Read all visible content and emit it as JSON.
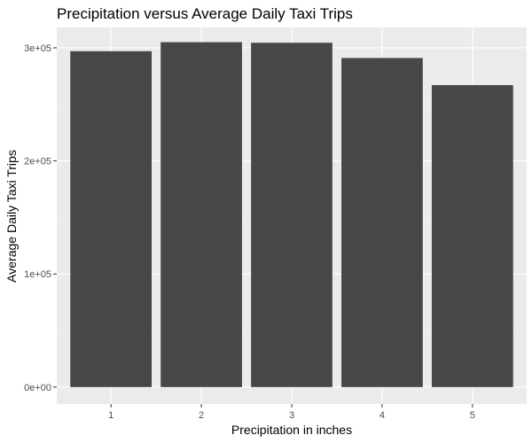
{
  "chart_data": {
    "type": "bar",
    "title": "Precipitation versus Average Daily Taxi Trips",
    "xlabel": "Precipitation in inches",
    "ylabel": "Average Daily Taxi Trips",
    "categories": [
      "1",
      "2",
      "3",
      "4",
      "5"
    ],
    "values": [
      297000,
      305000,
      304500,
      291000,
      267000
    ],
    "ylim": [
      -15000,
      318000
    ],
    "yticks": [
      0,
      100000,
      200000,
      300000
    ],
    "ytick_labels": [
      "0e+00",
      "1e+05",
      "2e+05",
      "3e+05"
    ],
    "grid": true,
    "legend": "none",
    "colors": {
      "bar": "#474747",
      "panel": "#ebebeb",
      "grid": "#ffffff"
    }
  }
}
